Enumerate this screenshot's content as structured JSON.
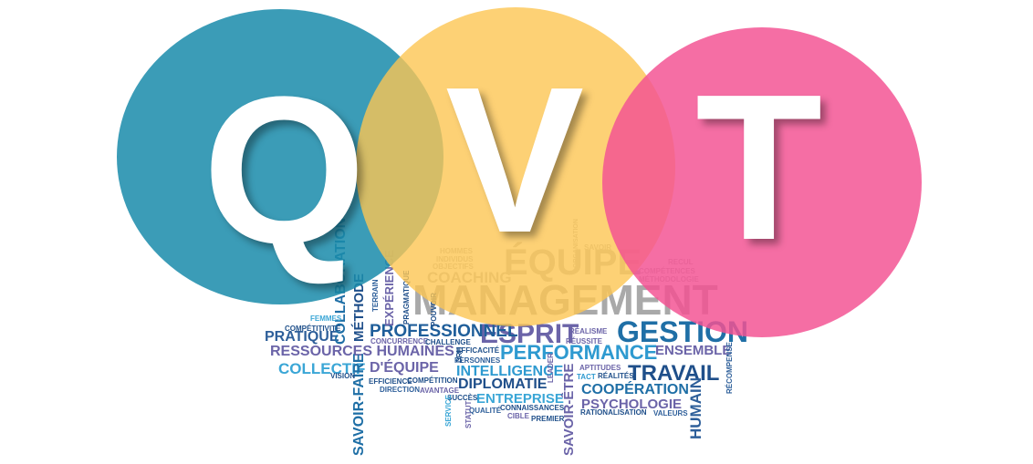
{
  "letters": {
    "q": "Q",
    "v": "V",
    "t": "T"
  },
  "colors": {
    "q_circle": "#1b8cab",
    "v_circle": "#fcc552",
    "t_circle": "#f35292"
  },
  "words": [
    {
      "t": "MANAGEMENT",
      "c": "#a9a9a9"
    },
    {
      "t": "ÉQUIPE",
      "c": "#b9b9b9"
    },
    {
      "t": "GESTION",
      "c": "#1f6fa6"
    },
    {
      "t": "ESPRIT",
      "c": "#6b64a8"
    },
    {
      "t": "PROFESSIONNEL",
      "c": "#1f5e9a"
    },
    {
      "t": "PERFORMANCE",
      "c": "#2e9ad0"
    },
    {
      "t": "TRAVAIL",
      "c": "#1f4f8a"
    },
    {
      "t": "RESSOURCES HUMAINES",
      "c": "#6b64a8"
    },
    {
      "t": "PRATIQUE",
      "c": "#2e5f9a"
    },
    {
      "t": "COLLECTIF",
      "c": "#3aa6d6"
    },
    {
      "t": "D'ÉQUIPE",
      "c": "#6b64a8"
    },
    {
      "t": "INTELLIGENCE",
      "c": "#2e9ad0"
    },
    {
      "t": "DIPLOMATIE",
      "c": "#1f4f8a"
    },
    {
      "t": "ENTREPRISE",
      "c": "#3aa6d6"
    },
    {
      "t": "COOPÉRATION",
      "c": "#1f6fa6"
    },
    {
      "t": "PSYCHOLOGIE",
      "c": "#6b64a8"
    },
    {
      "t": "ENSEMBLE",
      "c": "#6b64a8"
    },
    {
      "t": "COACHING",
      "c": "#b9b9b9"
    },
    {
      "t": "SAVOIR-FAIRE",
      "c": "#1f6fa6"
    },
    {
      "t": "SAVOIR-ÊTRE",
      "c": "#6b64a8"
    },
    {
      "t": "HUMAIN",
      "c": "#2e5f9a"
    },
    {
      "t": "COLLABORATION",
      "c": "#1f6fa6"
    },
    {
      "t": "MÉTHODE",
      "c": "#1f4f8a"
    },
    {
      "t": "EXPÉRIENCE",
      "c": "#6b64a8"
    },
    {
      "t": "COMPÉTITIVITÉ",
      "c": "#1f4f8a"
    },
    {
      "t": "CONCURRENCE",
      "c": "#6b64a8"
    },
    {
      "t": "CHALLENGE",
      "c": "#1f4f8a"
    },
    {
      "t": "EFFICACITÉ",
      "c": "#1f4f8a"
    },
    {
      "t": "PERSONNES",
      "c": "#2e5f9a"
    },
    {
      "t": "RÉALISME",
      "c": "#6b64a8"
    },
    {
      "t": "RÉUSSITE",
      "c": "#6b64a8"
    },
    {
      "t": "TACT",
      "c": "#2e9ad0"
    },
    {
      "t": "RÉALITÉS",
      "c": "#1f4f8a"
    },
    {
      "t": "APTITUDES",
      "c": "#6b64a8"
    },
    {
      "t": "EFFICIENCE",
      "c": "#1f4f8a"
    },
    {
      "t": "COMPÉTITION",
      "c": "#1f4f8a"
    },
    {
      "t": "DIRECTION",
      "c": "#2e5f9a"
    },
    {
      "t": "AVANTAGE",
      "c": "#6b64a8"
    },
    {
      "t": "SUCCÈS",
      "c": "#1f4f8a"
    },
    {
      "t": "QUALITÉ",
      "c": "#2e5f9a"
    },
    {
      "t": "CONNAISSANCES",
      "c": "#1f4f8a"
    },
    {
      "t": "CIBLE",
      "c": "#6b64a8"
    },
    {
      "t": "PREMIER",
      "c": "#1f4f8a"
    },
    {
      "t": "RATIONALISATION",
      "c": "#1f4f8a"
    },
    {
      "t": "VALEURS",
      "c": "#2e5f9a"
    },
    {
      "t": "VISION",
      "c": "#1f4f8a"
    },
    {
      "t": "FEMMES",
      "c": "#3aa6d6"
    },
    {
      "t": "HOMMES",
      "c": "#b9b9b9"
    },
    {
      "t": "INDIVIDUS",
      "c": "#b9b9b9"
    },
    {
      "t": "OBJECTIFS",
      "c": "#b9b9b9"
    },
    {
      "t": "SAVOIR",
      "c": "#b9b9b9"
    },
    {
      "t": "RECUL",
      "c": "#b9b9b9"
    },
    {
      "t": "COMPÉTENCES",
      "c": "#b9b9b9"
    },
    {
      "t": "MÉTHODOLOGIE",
      "c": "#b9b9b9"
    },
    {
      "t": "DRH",
      "c": "#1f4f8a"
    },
    {
      "t": "LEADER",
      "c": "#6b64a8"
    },
    {
      "t": "RÉCOMPENSE",
      "c": "#2e5f9a"
    },
    {
      "t": "SERVICE",
      "c": "#3aa6d6"
    },
    {
      "t": "STATUT",
      "c": "#6b64a8"
    },
    {
      "t": "PRAGMATIQUE",
      "c": "#1f4f8a"
    },
    {
      "t": "POUVOIR",
      "c": "#1f4f8a"
    },
    {
      "t": "TERRAIN",
      "c": "#2e5f9a"
    },
    {
      "t": "ORGANISATION",
      "c": "#b9b9b9"
    }
  ]
}
